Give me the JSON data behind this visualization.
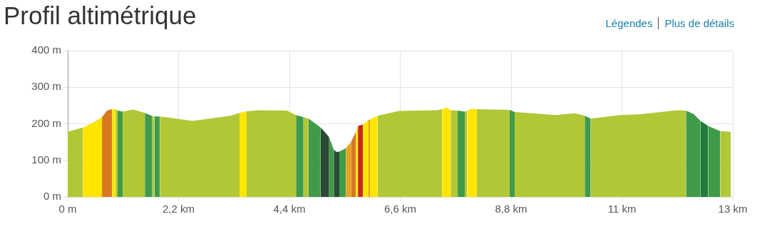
{
  "chart_data": {
    "type": "area",
    "title": "Profil altimétrique",
    "annotations": [
      "Légendes",
      "Plus de détails"
    ],
    "series": [
      {
        "color": "#b2c736",
        "x": [
          0,
          0.3
        ],
        "values": [
          178,
          190
        ]
      },
      {
        "color": "#ffe500",
        "x": [
          0.3,
          0.5,
          0.68
        ],
        "values": [
          190,
          203,
          218
        ]
      },
      {
        "color": "#d9771f",
        "x": [
          0.68,
          0.78,
          0.88
        ],
        "values": [
          218,
          236,
          240
        ]
      },
      {
        "color": "#ffe500",
        "x": [
          0.88,
          0.95
        ],
        "values": [
          240,
          240
        ]
      },
      {
        "color": "#b2c736",
        "x": [
          0.95,
          0.99
        ],
        "values": [
          240,
          236
        ]
      },
      {
        "color": "#3f9b48",
        "x": [
          0.99,
          1.09
        ],
        "values": [
          236,
          233
        ]
      },
      {
        "color": "#b2c736",
        "x": [
          1.09,
          1.3,
          1.53
        ],
        "values": [
          233,
          239,
          230
        ]
      },
      {
        "color": "#3f9b48",
        "x": [
          1.53,
          1.68
        ],
        "values": [
          230,
          221
        ]
      },
      {
        "color": "#b2c736",
        "x": [
          1.68,
          1.72
        ],
        "values": [
          221,
          220
        ]
      },
      {
        "color": "#3f9b48",
        "x": [
          1.72,
          1.83
        ],
        "values": [
          220,
          220
        ]
      },
      {
        "color": "#b2c736",
        "x": [
          1.83,
          2.48,
          3.23,
          3.41
        ],
        "values": [
          220,
          208,
          222,
          230
        ]
      },
      {
        "color": "#ffe500",
        "x": [
          3.41,
          3.55
        ],
        "values": [
          230,
          234
        ]
      },
      {
        "color": "#b2c736",
        "x": [
          3.55,
          3.8,
          4.35,
          4.53
        ],
        "values": [
          234,
          237,
          236,
          224
        ]
      },
      {
        "color": "#3f9b48",
        "x": [
          4.53,
          4.68
        ],
        "values": [
          224,
          218
        ]
      },
      {
        "color": "#b2c736",
        "x": [
          4.68,
          4.78
        ],
        "values": [
          218,
          214
        ]
      },
      {
        "color": "#3f9b48",
        "x": [
          4.78,
          5.02
        ],
        "values": [
          214,
          190
        ]
      },
      {
        "color": "#2a4a33",
        "x": [
          5.02,
          5.1,
          5.19
        ],
        "values": [
          190,
          178,
          163
        ]
      },
      {
        "color": "#3f9b48",
        "x": [
          5.19,
          5.28
        ],
        "values": [
          163,
          129
        ]
      },
      {
        "color": "#2a4a33",
        "x": [
          5.28,
          5.34,
          5.39
        ],
        "values": [
          129,
          123,
          124
        ]
      },
      {
        "color": "#3f9b48",
        "x": [
          5.39,
          5.52
        ],
        "values": [
          124,
          133
        ]
      },
      {
        "color": "#e9a21f",
        "x": [
          5.52,
          5.62
        ],
        "values": [
          133,
          150
        ]
      },
      {
        "color": "#d9771f",
        "x": [
          5.62,
          5.72
        ],
        "values": [
          150,
          178
        ]
      },
      {
        "color": "#ffe500",
        "x": [
          5.72,
          5.76
        ],
        "values": [
          178,
          194
        ]
      },
      {
        "color": "#c9291a",
        "x": [
          5.76,
          5.86
        ],
        "values": [
          194,
          198
        ]
      },
      {
        "color": "#ffe500",
        "x": [
          5.86,
          5.97
        ],
        "values": [
          198,
          210
        ]
      },
      {
        "color": "#e9a21f",
        "x": [
          5.97,
          6.0
        ],
        "values": [
          210,
          212
        ]
      },
      {
        "color": "#ffe500",
        "x": [
          6.0,
          6.15
        ],
        "values": [
          212,
          222
        ]
      },
      {
        "color": "#b2c736",
        "x": [
          6.15,
          6.58,
          7.33,
          7.43
        ],
        "values": [
          222,
          235,
          237,
          240
        ]
      },
      {
        "color": "#ffe500",
        "x": [
          7.43,
          7.52,
          7.6
        ],
        "values": [
          240,
          245,
          237
        ]
      },
      {
        "color": "#b2c736",
        "x": [
          7.6,
          7.74
        ],
        "values": [
          237,
          236
        ]
      },
      {
        "color": "#3f9b48",
        "x": [
          7.74,
          7.88
        ],
        "values": [
          236,
          233
        ]
      },
      {
        "color": "#b2c736",
        "x": [
          7.88,
          7.93
        ],
        "values": [
          233,
          236
        ]
      },
      {
        "color": "#ffe500",
        "x": [
          7.93,
          8.02,
          8.12
        ],
        "values": [
          236,
          241,
          240
        ]
      },
      {
        "color": "#b2c736",
        "x": [
          8.12,
          8.77
        ],
        "values": [
          240,
          238
        ]
      },
      {
        "color": "#3f9b48",
        "x": [
          8.77,
          8.87
        ],
        "values": [
          238,
          232
        ]
      },
      {
        "color": "#b2c736",
        "x": [
          8.87,
          9.69,
          10.07,
          10.26
        ],
        "values": [
          232,
          224,
          229,
          222
        ]
      },
      {
        "color": "#3f9b48",
        "x": [
          10.26,
          10.38
        ],
        "values": [
          222,
          214
        ]
      },
      {
        "color": "#b2c736",
        "x": [
          10.38,
          10.96,
          11.35,
          12.1,
          12.27
        ],
        "values": [
          214,
          224,
          226,
          237,
          236
        ]
      },
      {
        "color": "#3f9b48",
        "x": [
          12.27,
          12.42,
          12.56
        ],
        "values": [
          236,
          227,
          208
        ]
      },
      {
        "color": "#227a3a",
        "x": [
          12.56,
          12.71
        ],
        "values": [
          208,
          194
        ]
      },
      {
        "color": "#3f9b48",
        "x": [
          12.71,
          12.95
        ],
        "values": [
          194,
          180
        ]
      },
      {
        "color": "#b2c736",
        "x": [
          12.95,
          13.16
        ],
        "values": [
          180,
          178
        ]
      }
    ],
    "xlim": [
      0,
      13.2
    ],
    "xticks": [
      {
        "value": 0,
        "label": "0 m"
      },
      {
        "value": 2.2,
        "label": "2,2 km"
      },
      {
        "value": 4.4,
        "label": "4,4 km"
      },
      {
        "value": 6.6,
        "label": "6,6 km"
      },
      {
        "value": 8.8,
        "label": "8,8 km"
      },
      {
        "value": 11,
        "label": "11 km"
      },
      {
        "value": 13.2,
        "label": "13 km"
      }
    ],
    "ylim": [
      0,
      400
    ],
    "yticks": [
      {
        "value": 0,
        "label": "0 m"
      },
      {
        "value": 100,
        "label": "100 m"
      },
      {
        "value": 200,
        "label": "200 m"
      },
      {
        "value": 300,
        "label": "300 m"
      },
      {
        "value": 400,
        "label": "400 m"
      }
    ],
    "grid": true,
    "legend": false
  }
}
